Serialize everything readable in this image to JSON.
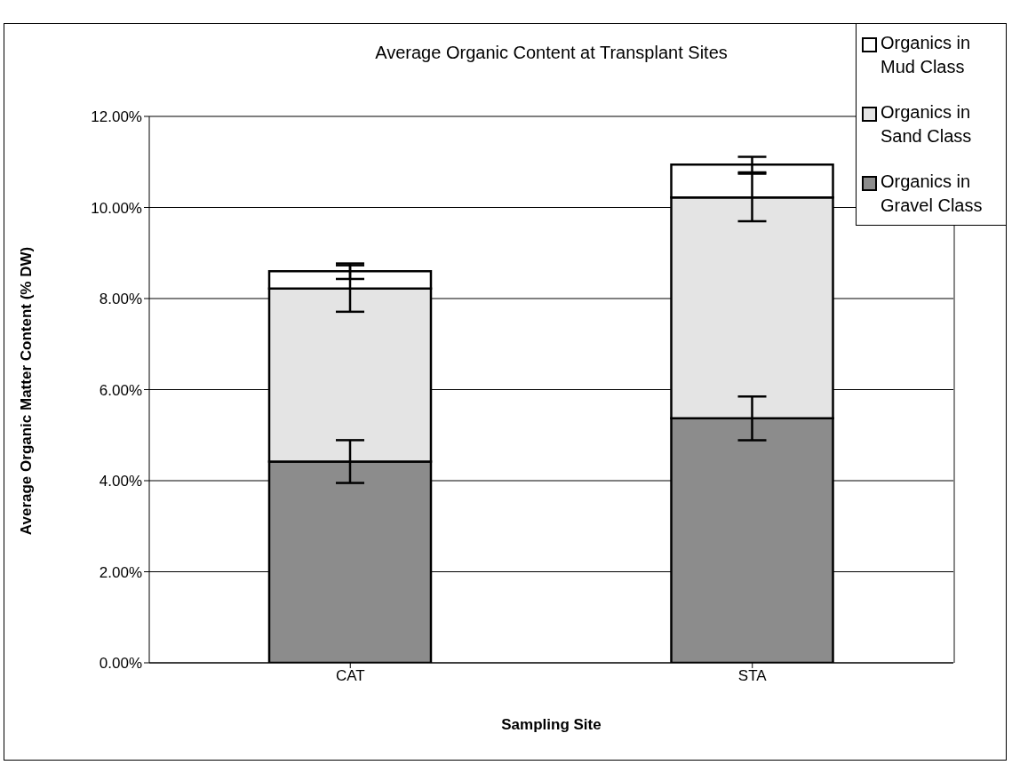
{
  "chart_data": {
    "type": "bar",
    "title": "Average Organic Content at Transplant Sites",
    "xlabel": "Sampling Site",
    "ylabel": "Average Organic Matter Content (% DW)",
    "categories": [
      "CAT",
      "STA"
    ],
    "stacked": true,
    "series": [
      {
        "name": "Organics in Gravel Class",
        "color": "#8c8c8c",
        "values": [
          4.42,
          5.37
        ],
        "errors": [
          0.47,
          0.48
        ]
      },
      {
        "name": "Organics in Sand Class",
        "color": "#e4e4e4",
        "values": [
          3.8,
          4.85
        ],
        "errors": [
          0.51,
          0.52
        ]
      },
      {
        "name": "Organics in Mud Class",
        "color": "#ffffff",
        "values": [
          0.38,
          0.72
        ],
        "errors": [
          0.17,
          0.17
        ]
      }
    ],
    "ylim": [
      0,
      12
    ],
    "yticks": [
      {
        "value": 0,
        "label": "0.00%"
      },
      {
        "value": 2,
        "label": "2.00%"
      },
      {
        "value": 4,
        "label": "4.00%"
      },
      {
        "value": 6,
        "label": "6.00%"
      },
      {
        "value": 8,
        "label": "8.00%"
      },
      {
        "value": 10,
        "label": "10.00%"
      },
      {
        "value": 12,
        "label": "12.00%"
      }
    ],
    "grid": "y",
    "legend": "top right"
  }
}
